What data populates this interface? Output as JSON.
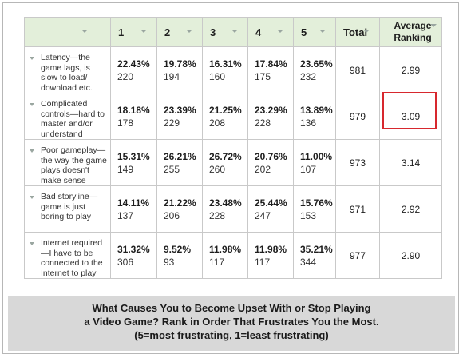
{
  "chart_data": {
    "type": "table",
    "columns": [
      "",
      "1",
      "2",
      "3",
      "4",
      "5",
      "Total",
      "Average Ranking"
    ],
    "rows": [
      {
        "label": "Latency—the game lags, is slow to load/ download etc.",
        "cells": [
          {
            "pct": "22.43%",
            "count": "220"
          },
          {
            "pct": "19.78%",
            "count": "194"
          },
          {
            "pct": "16.31%",
            "count": "160"
          },
          {
            "pct": "17.84%",
            "count": "175"
          },
          {
            "pct": "23.65%",
            "count": "232"
          }
        ],
        "total": "981",
        "average": "2.99"
      },
      {
        "label": "Complicated controls—hard to master and/or understand",
        "cells": [
          {
            "pct": "18.18%",
            "count": "178"
          },
          {
            "pct": "23.39%",
            "count": "229"
          },
          {
            "pct": "21.25%",
            "count": "208"
          },
          {
            "pct": "23.29%",
            "count": "228"
          },
          {
            "pct": "13.89%",
            "count": "136"
          }
        ],
        "total": "979",
        "average": "3.09"
      },
      {
        "label": "Poor gameplay—the way the game plays doesn't make sense",
        "cells": [
          {
            "pct": "15.31%",
            "count": "149"
          },
          {
            "pct": "26.21%",
            "count": "255"
          },
          {
            "pct": "26.72%",
            "count": "260"
          },
          {
            "pct": "20.76%",
            "count": "202"
          },
          {
            "pct": "11.00%",
            "count": "107"
          }
        ],
        "total": "973",
        "average": "3.14"
      },
      {
        "label": "Bad storyline—game is just boring to play",
        "cells": [
          {
            "pct": "14.11%",
            "count": "137"
          },
          {
            "pct": "21.22%",
            "count": "206"
          },
          {
            "pct": "23.48%",
            "count": "228"
          },
          {
            "pct": "25.44%",
            "count": "247"
          },
          {
            "pct": "15.76%",
            "count": "153"
          }
        ],
        "total": "971",
        "average": "2.92"
      },
      {
        "label": "Internet required—I have to be connected to the Internet to play",
        "cells": [
          {
            "pct": "31.32%",
            "count": "306"
          },
          {
            "pct": "9.52%",
            "count": "93"
          },
          {
            "pct": "11.98%",
            "count": "117"
          },
          {
            "pct": "11.98%",
            "count": "117"
          },
          {
            "pct": "35.21%",
            "count": "344"
          }
        ],
        "total": "977",
        "average": "2.90"
      }
    ],
    "highlighted_cell": {
      "row": 1,
      "column": "Average Ranking"
    },
    "highlight_color": "#d7282e",
    "header_color": "#e3efda"
  },
  "caption": {
    "line1": "What Causes You to Become Upset With or Stop Playing",
    "line2": "a Video Game? Rank in Order That Frustrates You the Most.",
    "line3": "(5=most frustrating, 1=least frustrating)"
  }
}
